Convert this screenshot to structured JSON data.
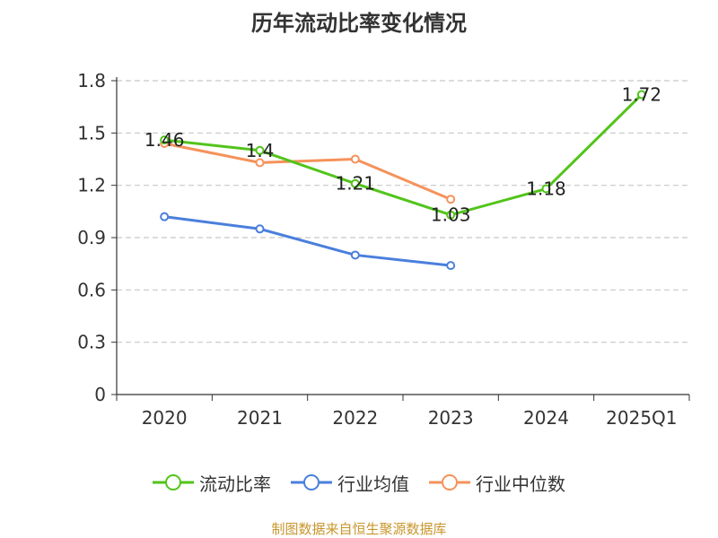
{
  "title": "历年流动比率变化情况",
  "source": "制图数据来自恒生聚源数据库",
  "chart_data": {
    "type": "line",
    "title": "历年流动比率变化情况",
    "categories": [
      "2020",
      "2021",
      "2022",
      "2023",
      "2024",
      "2025Q1"
    ],
    "ylim": [
      0,
      1.8
    ],
    "yticks": [
      0,
      0.3,
      0.6,
      0.9,
      1.2,
      1.5,
      1.8
    ],
    "grid": true,
    "legend_position": "bottom",
    "series": [
      {
        "name": "流动比率",
        "color": "#52c41a",
        "values": [
          1.46,
          1.4,
          1.21,
          1.03,
          1.18,
          1.72
        ],
        "labels": [
          "1.46",
          "1.4",
          "1.21",
          "1.03",
          "1.18",
          "1.72"
        ]
      },
      {
        "name": "行业均值",
        "color": "#4a7fdc",
        "values": [
          1.02,
          0.95,
          0.8,
          0.74,
          null,
          null
        ]
      },
      {
        "name": "行业中位数",
        "color": "#f5925a",
        "values": [
          1.44,
          1.33,
          1.35,
          1.12,
          null,
          null
        ]
      }
    ]
  }
}
